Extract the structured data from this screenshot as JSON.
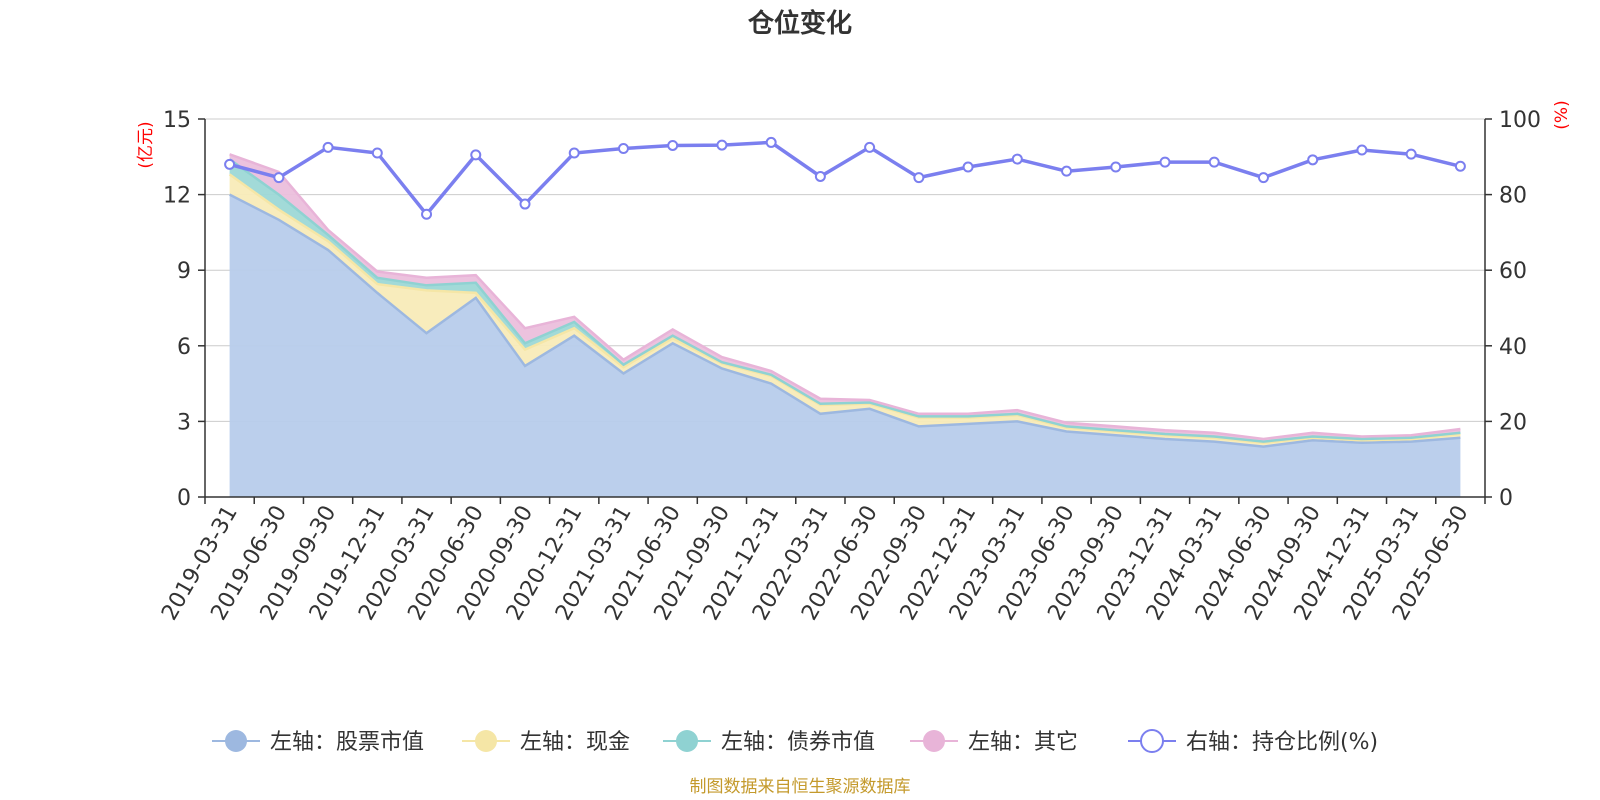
{
  "title": "仓位变化",
  "source": "制图数据来自恒生聚源数据库",
  "chart_data": {
    "type": "area",
    "title": "仓位变化",
    "left_axis": {
      "unit_label": "(亿元)",
      "ylim": [
        0,
        15
      ],
      "ticks": [
        "0",
        "3",
        "6",
        "9",
        "12",
        "15"
      ]
    },
    "right_axis": {
      "unit_label": "(%)",
      "ylim": [
        0,
        100
      ],
      "ticks": [
        "0",
        "20",
        "40",
        "60",
        "80",
        "100"
      ]
    },
    "grid": true,
    "legend_position": "bottom",
    "x": [
      "2019-03-31",
      "2019-06-30",
      "2019-09-30",
      "2019-12-31",
      "2020-03-31",
      "2020-06-30",
      "2020-09-30",
      "2020-12-31",
      "2021-03-31",
      "2021-06-30",
      "2021-09-30",
      "2021-12-31",
      "2022-03-31",
      "2022-06-30",
      "2022-09-30",
      "2022-12-31",
      "2023-03-31",
      "2023-06-30",
      "2023-09-30",
      "2023-12-31",
      "2024-03-31",
      "2024-06-30",
      "2024-09-30",
      "2024-12-31",
      "2025-03-31",
      "2025-06-30"
    ],
    "series": [
      {
        "name": "左轴：股票市值",
        "axis": "left",
        "stacked": true,
        "color": "#9db8e0",
        "fill": "#b7cceb",
        "values": [
          12.0,
          11.0,
          9.8,
          8.1,
          6.5,
          7.9,
          5.2,
          6.4,
          4.9,
          6.1,
          5.1,
          4.5,
          3.3,
          3.5,
          2.8,
          2.9,
          3.0,
          2.6,
          2.45,
          2.3,
          2.2,
          2.0,
          2.25,
          2.15,
          2.2,
          2.35
        ]
      },
      {
        "name": "左轴：现金",
        "axis": "left",
        "stacked": true,
        "color": "#f5e6a6",
        "fill": "#f8ebb8",
        "values": [
          0.8,
          0.4,
          0.35,
          0.35,
          1.7,
          0.2,
          0.65,
          0.3,
          0.25,
          0.2,
          0.2,
          0.3,
          0.35,
          0.2,
          0.35,
          0.25,
          0.25,
          0.15,
          0.15,
          0.15,
          0.15,
          0.15,
          0.1,
          0.1,
          0.1,
          0.15
        ]
      },
      {
        "name": "左轴：债券市值",
        "axis": "left",
        "stacked": true,
        "color": "#8fd2d2",
        "fill": "#9dd8d6",
        "values": [
          0.6,
          0.6,
          0.25,
          0.25,
          0.2,
          0.4,
          0.25,
          0.25,
          0.1,
          0.1,
          0.05,
          0.05,
          0.05,
          0.05,
          0.05,
          0.05,
          0.05,
          0.05,
          0.05,
          0.05,
          0.05,
          0.05,
          0.05,
          0.05,
          0.05,
          0.05
        ]
      },
      {
        "name": "左轴：其它",
        "axis": "left",
        "stacked": true,
        "color": "#e8b4d8",
        "fill": "#ebbfdc",
        "values": [
          0.2,
          0.9,
          0.2,
          0.25,
          0.3,
          0.3,
          0.6,
          0.2,
          0.2,
          0.25,
          0.2,
          0.15,
          0.2,
          0.1,
          0.1,
          0.1,
          0.15,
          0.15,
          0.15,
          0.15,
          0.15,
          0.1,
          0.15,
          0.1,
          0.1,
          0.15
        ]
      },
      {
        "name": "右轴：持仓比例(%)",
        "axis": "right",
        "stacked": false,
        "color": "#7b7fef",
        "fill": "none",
        "values": [
          88.0,
          84.5,
          92.5,
          91.0,
          74.8,
          90.5,
          77.5,
          91.0,
          92.2,
          93.0,
          93.1,
          93.8,
          84.8,
          92.5,
          84.5,
          87.3,
          89.4,
          86.2,
          87.3,
          88.6,
          88.6,
          84.5,
          89.2,
          91.8,
          90.7,
          87.5
        ]
      }
    ]
  }
}
